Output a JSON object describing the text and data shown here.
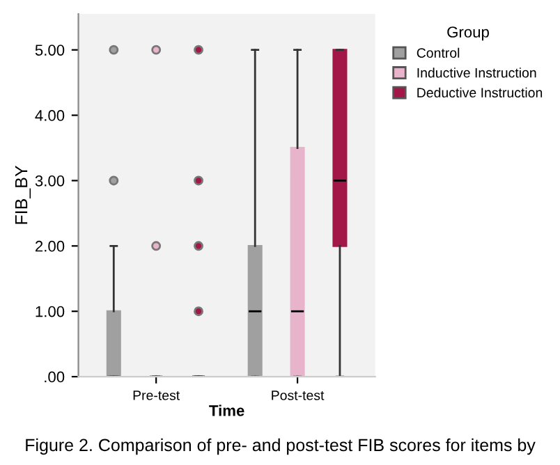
{
  "chart_data": {
    "type": "box",
    "xlabel": "Time",
    "ylabel": "FIB_BY",
    "legend_title": "Group",
    "legend": "right",
    "grid": false,
    "categories": [
      "Pre-test",
      "Post-test"
    ],
    "ylim": [
      0,
      5.55
    ],
    "yticks": [
      {
        "value": 0,
        "label": ".00"
      },
      {
        "value": 1,
        "label": "1.00"
      },
      {
        "value": 2,
        "label": "2.00"
      },
      {
        "value": 3,
        "label": "3.00"
      },
      {
        "value": 4,
        "label": "4.00"
      },
      {
        "value": 5,
        "label": "5.00"
      }
    ],
    "series": [
      {
        "name": "Control",
        "color": "#a0a0a0",
        "boxes": [
          {
            "low": 0,
            "q1": 0,
            "median": 0,
            "q3": 1,
            "high": 2,
            "outliers": [
              3,
              5
            ]
          },
          {
            "low": 0,
            "q1": 0,
            "median": 1,
            "q3": 2,
            "high": 5
          }
        ]
      },
      {
        "name": "Inductive Instruction",
        "color": "#e8b4cb",
        "boxes": [
          {
            "low": 0,
            "q1": 0,
            "median": 0,
            "q3": 0,
            "high": 0,
            "outliers": [
              2,
              5
            ]
          },
          {
            "low": 0,
            "q1": 0,
            "median": 1,
            "q3": 3.5,
            "high": 5
          }
        ]
      },
      {
        "name": "Deductive Instruction",
        "color": "#a31648",
        "boxes": [
          {
            "low": 0,
            "q1": 0,
            "median": 0,
            "q3": 0,
            "high": 0,
            "outliers": [
              1,
              2,
              3,
              5
            ]
          },
          {
            "low": 0,
            "q1": 2,
            "median": 3,
            "q3": 5,
            "high": 5
          }
        ]
      }
    ],
    "annotations": [
      "Figure 2. Comparison of pre- and post-test FIB scores for items by"
    ]
  }
}
